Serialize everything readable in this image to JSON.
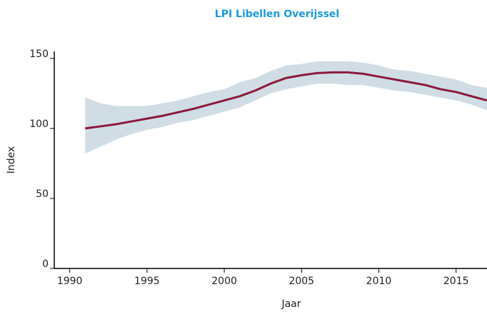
{
  "chart_data": {
    "type": "line",
    "title": "LPI Libellen Overijssel",
    "x_label": "Jaar",
    "y_label": "Index",
    "x": [
      1991,
      1992,
      1993,
      1994,
      1995,
      1996,
      1997,
      1998,
      1999,
      2000,
      2001,
      2002,
      2003,
      2004,
      2005,
      2006,
      2007,
      2008,
      2009,
      2010,
      2011,
      2012,
      2013,
      2014,
      2015,
      2016,
      2017
    ],
    "values": [
      100,
      101.5,
      103,
      105,
      107,
      109,
      111.5,
      114,
      117,
      120,
      123,
      127,
      132,
      136,
      138,
      139.5,
      140,
      140,
      139,
      137,
      135,
      133,
      131,
      128,
      126,
      123,
      120
    ],
    "lower": [
      82,
      87,
      92,
      96,
      99,
      101,
      104,
      106,
      109,
      112,
      115,
      120,
      125,
      128,
      130,
      132,
      132,
      131,
      131,
      129,
      127,
      126,
      124,
      122,
      120,
      117,
      113
    ],
    "upper": [
      122,
      118,
      116,
      116,
      116,
      118,
      120,
      123,
      126,
      128,
      133,
      136,
      141,
      145,
      146,
      148,
      148,
      148,
      147,
      145,
      142,
      141,
      139,
      137,
      135,
      131,
      129
    ],
    "color": "#8b1a3a",
    "band_color": "#d0dde5",
    "xlim": [
      1989,
      2017
    ],
    "ylim": [
      0,
      155
    ],
    "xticks": [
      1990,
      1995,
      2000,
      2005,
      2010,
      2015
    ],
    "yticks": [
      0,
      50,
      100,
      150
    ]
  }
}
